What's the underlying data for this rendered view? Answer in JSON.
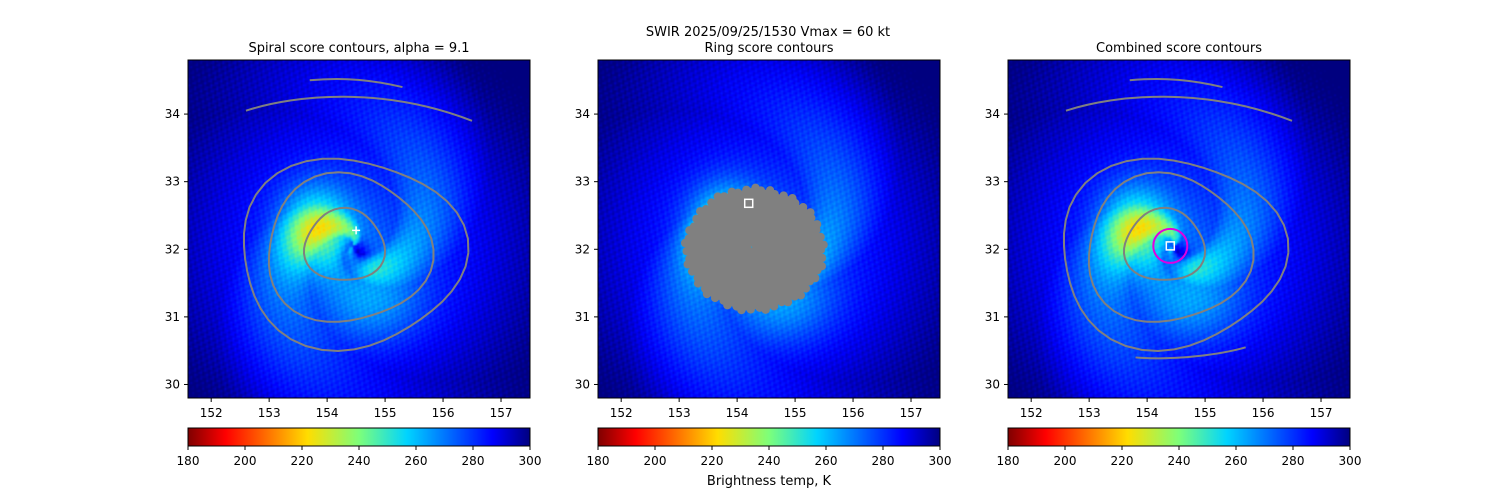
{
  "figure": {
    "suptitle_line1": "SWIR  2025/09/25/1530    Vmax = 60 kt",
    "colorbar_label": "Brightness temp, K"
  },
  "chart_data": [
    {
      "type": "heatmap",
      "title": "Spiral score contours, alpha =  9.1",
      "xlim": [
        151.6,
        157.5
      ],
      "ylim": [
        29.8,
        34.8
      ],
      "xticks": [
        152,
        153,
        154,
        155,
        156,
        157
      ],
      "yticks": [
        30,
        31,
        32,
        33,
        34
      ],
      "colorbar": {
        "colormap": "jet_r",
        "range": [
          180,
          300
        ],
        "ticks": [
          180,
          200,
          220,
          240,
          260,
          280,
          300
        ]
      },
      "contour_color": "#808080",
      "marker": {
        "type": "plus",
        "x": 154.5,
        "y": 32.28
      }
    },
    {
      "type": "heatmap",
      "title": "Ring score contours",
      "xlim": [
        151.6,
        157.5
      ],
      "ylim": [
        29.8,
        34.8
      ],
      "xticks": [
        152,
        153,
        154,
        155,
        156,
        157
      ],
      "yticks": [
        30,
        31,
        32,
        33,
        34
      ],
      "colorbar": {
        "colormap": "jet_r",
        "range": [
          180,
          300
        ],
        "ticks": [
          180,
          200,
          220,
          240,
          260,
          280,
          300
        ]
      },
      "contour_color": "#808080",
      "marker": {
        "type": "square",
        "x": 154.2,
        "y": 32.68
      }
    },
    {
      "type": "heatmap",
      "title": "Combined score contours",
      "xlim": [
        151.6,
        157.5
      ],
      "ylim": [
        29.8,
        34.8
      ],
      "xticks": [
        152,
        153,
        154,
        155,
        156,
        157
      ],
      "yticks": [
        30,
        31,
        32,
        33,
        34
      ],
      "colorbar": {
        "colormap": "jet_r",
        "range": [
          180,
          300
        ],
        "ticks": [
          180,
          200,
          220,
          240,
          260,
          280,
          300
        ]
      },
      "contour_color": "#808080",
      "marker": {
        "type": "square",
        "x": 154.4,
        "y": 32.05
      },
      "circle": {
        "x": 154.4,
        "y": 32.05,
        "color": "#e000e0"
      }
    }
  ]
}
